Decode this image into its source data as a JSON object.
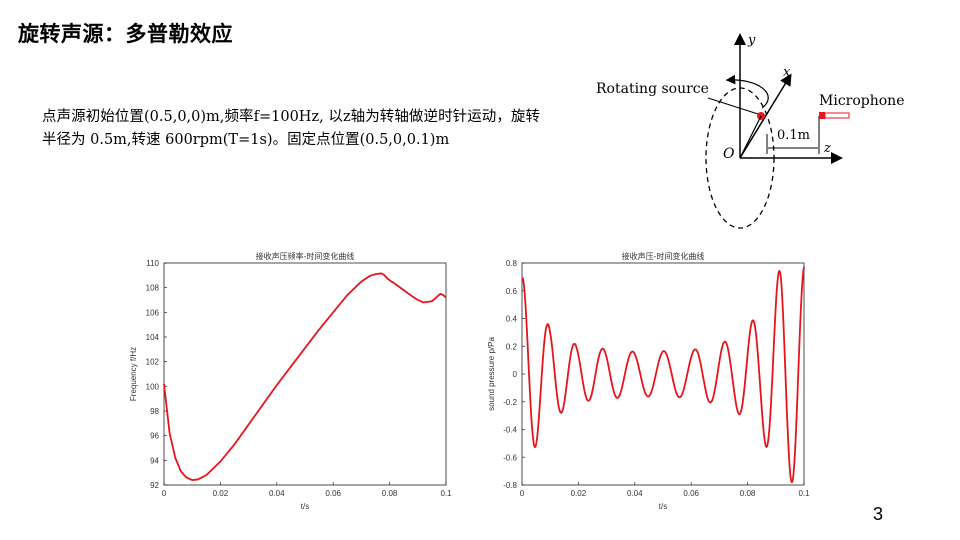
{
  "slide": {
    "title": "旋转声源：多普勒效应",
    "description": "点声源初始位置(0.5,0,0)m,频率f=100Hz, 以z轴为转轴做逆时针运动，旋转半径为 0.5m,转速 600rpm(T=1s)。固定点位置(0.5,0,0.1)m",
    "page_number": "3"
  },
  "diagram": {
    "labels": {
      "y": "y",
      "x": "x",
      "z": "z",
      "origin": "O",
      "rotating_source": "Rotating source",
      "microphone": "Microphone",
      "distance": "0.1m"
    },
    "colors": {
      "source": "#e8141b",
      "axes": "#000000"
    }
  },
  "chart_data": [
    {
      "type": "line",
      "title": "接收声压频率-时间变化曲线",
      "xlabel": "t/s",
      "ylabel": "Frequency f/Hz",
      "xlim": [
        0,
        0.1
      ],
      "ylim": [
        92,
        110
      ],
      "xticks": [
        "0",
        "0.02",
        "0.04",
        "0.06",
        "0.08",
        "0.1"
      ],
      "yticks": [
        "92",
        "94",
        "96",
        "98",
        "100",
        "102",
        "104",
        "106",
        "108",
        "110"
      ],
      "color": "#e8141b",
      "series": [
        {
          "x": [
            0,
            0.002,
            0.004,
            0.006,
            0.008,
            0.01,
            0.012,
            0.015,
            0.02,
            0.025,
            0.03,
            0.035,
            0.04,
            0.045,
            0.05,
            0.055,
            0.06,
            0.065,
            0.07,
            0.073,
            0.075,
            0.077,
            0.078,
            0.079,
            0.08,
            0.082,
            0.085,
            0.088,
            0.09,
            0.092,
            0.095,
            0.097,
            0.098,
            0.099,
            0.1
          ],
          "y": [
            100.2,
            96.2,
            94.2,
            93.1,
            92.6,
            92.4,
            92.45,
            92.8,
            93.9,
            95.3,
            96.9,
            98.5,
            100.1,
            101.6,
            103.1,
            104.6,
            106.0,
            107.4,
            108.5,
            108.95,
            109.1,
            109.15,
            109.05,
            108.8,
            108.6,
            108.3,
            107.8,
            107.3,
            107.0,
            106.8,
            106.9,
            107.3,
            107.5,
            107.4,
            107.2
          ]
        }
      ]
    },
    {
      "type": "line",
      "title": "接收声压-时间变化曲线",
      "xlabel": "t/s",
      "ylabel": "sound pressure p/Pa",
      "xlim": [
        0,
        0.1
      ],
      "ylim": [
        -0.8,
        0.8
      ],
      "xticks": [
        "0",
        "0.02",
        "0.04",
        "0.06",
        "0.08",
        "0.1"
      ],
      "yticks": [
        "-0.8",
        "-0.6",
        "-0.4",
        "-0.2",
        "0",
        "0.2",
        "0.4",
        "0.6",
        "0.8"
      ],
      "color": "#e8141b",
      "series": [
        {
          "amplitude_envelope": [
            [
              0,
              0.7
            ],
            [
              0.01,
              0.33
            ],
            [
              0.02,
              0.2
            ],
            [
              0.04,
              0.16
            ],
            [
              0.06,
              0.17
            ],
            [
              0.075,
              0.25
            ],
            [
              0.085,
              0.45
            ],
            [
              0.092,
              0.78
            ],
            [
              0.1,
              0.78
            ]
          ],
          "note": ""
        }
      ]
    }
  ]
}
